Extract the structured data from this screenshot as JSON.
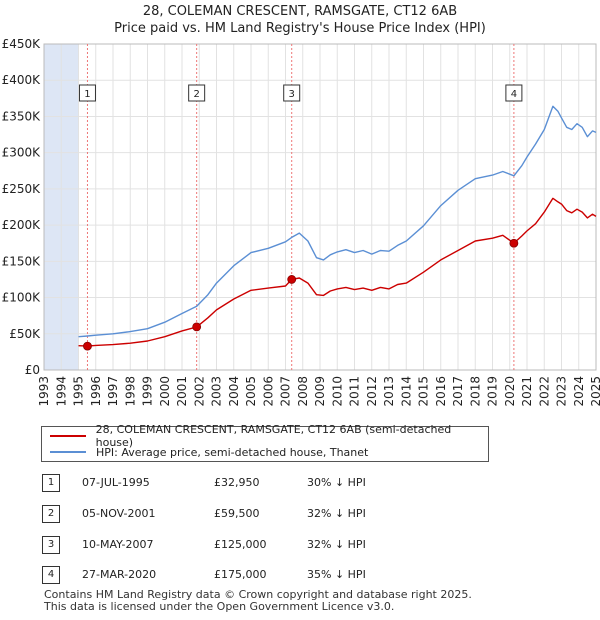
{
  "header": {
    "title": "28, COLEMAN CRESCENT, RAMSGATE, CT12 6AB",
    "subtitle": "Price paid vs. HM Land Registry's House Price Index (HPI)"
  },
  "colors": {
    "property": "#cc0000",
    "hpi": "#5b8fd4",
    "shade": "#dde6f5",
    "vline": "#ee7777"
  },
  "chart_data": {
    "type": "line",
    "title": "28, COLEMAN CRESCENT, RAMSGATE, CT12 6AB",
    "subtitle": "Price paid vs. HM Land Registry's House Price Index (HPI)",
    "xlabel": "",
    "ylabel": "",
    "xlim": [
      1993,
      2025
    ],
    "ylim": [
      0,
      450000
    ],
    "x_ticks": [
      "1993",
      "1994",
      "1995",
      "1996",
      "1997",
      "1998",
      "1999",
      "2000",
      "2001",
      "2002",
      "2003",
      "2004",
      "2005",
      "2006",
      "2007",
      "2008",
      "2009",
      "2010",
      "2011",
      "2012",
      "2013",
      "2014",
      "2015",
      "2016",
      "2017",
      "2018",
      "2019",
      "2020",
      "2021",
      "2022",
      "2023",
      "2024",
      "2025"
    ],
    "y_ticks": [
      0,
      50000,
      100000,
      150000,
      200000,
      250000,
      300000,
      350000,
      400000,
      450000
    ],
    "y_tick_labels": [
      "£0",
      "£50K",
      "£100K",
      "£150K",
      "£200K",
      "£250K",
      "£300K",
      "£350K",
      "£400K",
      "£450K"
    ],
    "grid": true,
    "data_range": [
      1995.0,
      2025.0
    ],
    "series": [
      {
        "name": "28, COLEMAN CRESCENT, RAMSGATE, CT12 6AB (semi-detached house)",
        "color": "#cc0000",
        "x": [
          1995.0,
          1995.52,
          1996.0,
          1997.0,
          1998.0,
          1999.0,
          2000.0,
          2001.0,
          2001.85,
          2002.5,
          2003.0,
          2004.0,
          2005.0,
          2006.0,
          2007.0,
          2007.36,
          2007.8,
          2008.3,
          2008.8,
          2009.2,
          2009.6,
          2010.0,
          2010.5,
          2011.0,
          2011.5,
          2012.0,
          2012.5,
          2013.0,
          2013.5,
          2014.0,
          2015.0,
          2016.0,
          2017.0,
          2018.0,
          2019.0,
          2019.6,
          2020.24,
          2020.7,
          2021.0,
          2021.5,
          2022.0,
          2022.5,
          2022.8,
          2023.0,
          2023.3,
          2023.6,
          2023.9,
          2024.2,
          2024.5,
          2024.8,
          2025.0
        ],
        "y": [
          33500,
          32950,
          34000,
          35000,
          37000,
          40000,
          46000,
          54000,
          59500,
          72000,
          83000,
          98000,
          110000,
          113000,
          116000,
          125000,
          127000,
          120000,
          104000,
          103000,
          109000,
          112000,
          114000,
          111000,
          113000,
          110000,
          114000,
          112000,
          118000,
          120000,
          135000,
          152000,
          165000,
          178000,
          182000,
          186000,
          175000,
          185000,
          192000,
          202000,
          218000,
          237000,
          232000,
          229000,
          220000,
          217000,
          222000,
          218000,
          210000,
          215000,
          212000
        ]
      },
      {
        "name": "HPI: Average price, semi-detached house, Thanet",
        "color": "#5b8fd4",
        "x": [
          1995.0,
          1995.52,
          1996.0,
          1997.0,
          1998.0,
          1999.0,
          2000.0,
          2001.0,
          2001.85,
          2002.5,
          2003.0,
          2004.0,
          2005.0,
          2006.0,
          2007.0,
          2007.36,
          2007.8,
          2008.3,
          2008.8,
          2009.2,
          2009.6,
          2010.0,
          2010.5,
          2011.0,
          2011.5,
          2012.0,
          2012.5,
          2013.0,
          2013.5,
          2014.0,
          2015.0,
          2016.0,
          2017.0,
          2018.0,
          2019.0,
          2019.6,
          2020.24,
          2020.7,
          2021.0,
          2021.5,
          2022.0,
          2022.5,
          2022.8,
          2023.0,
          2023.3,
          2023.6,
          2023.9,
          2024.2,
          2024.5,
          2024.8,
          2025.0
        ],
        "y": [
          46000,
          47000,
          48000,
          50000,
          53000,
          57000,
          66000,
          78000,
          88000,
          104000,
          120000,
          144000,
          162000,
          168000,
          177000,
          183000,
          189000,
          178000,
          155000,
          152000,
          159000,
          163000,
          166000,
          162000,
          165000,
          160000,
          165000,
          164000,
          172000,
          178000,
          199000,
          227000,
          248000,
          264000,
          269000,
          274000,
          268000,
          282000,
          294000,
          312000,
          332000,
          364000,
          357000,
          348000,
          335000,
          332000,
          340000,
          335000,
          322000,
          330000,
          328000
        ]
      }
    ],
    "transactions": [
      {
        "label": "1",
        "year": 1995.52,
        "price": 32950,
        "date": "07-JUL-1995",
        "price_label": "£32,950",
        "hpi_delta": "30% ↓ HPI"
      },
      {
        "label": "2",
        "year": 2001.85,
        "price": 59500,
        "date": "05-NOV-2001",
        "price_label": "£59,500",
        "hpi_delta": "32% ↓ HPI"
      },
      {
        "label": "3",
        "year": 2007.36,
        "price": 125000,
        "date": "10-MAY-2007",
        "price_label": "£125,000",
        "hpi_delta": "32% ↓ HPI"
      },
      {
        "label": "4",
        "year": 2020.24,
        "price": 175000,
        "date": "27-MAR-2020",
        "price_label": "£175,000",
        "hpi_delta": "35% ↓ HPI"
      }
    ]
  },
  "legend": {
    "property_label": "28, COLEMAN CRESCENT, RAMSGATE, CT12 6AB (semi-detached house)",
    "hpi_label": "HPI: Average price, semi-detached house, Thanet"
  },
  "transactions_table": [
    {
      "label": "1",
      "date": "07-JUL-1995",
      "price": "£32,950",
      "hpi": "30% ↓ HPI"
    },
    {
      "label": "2",
      "date": "05-NOV-2001",
      "price": "£59,500",
      "hpi": "32% ↓ HPI"
    },
    {
      "label": "3",
      "date": "10-MAY-2007",
      "price": "£125,000",
      "hpi": "32% ↓ HPI"
    },
    {
      "label": "4",
      "date": "27-MAR-2020",
      "price": "£175,000",
      "hpi": "35% ↓ HPI"
    }
  ],
  "footer": {
    "line1": "Contains HM Land Registry data © Crown copyright and database right 2025.",
    "line2": "This data is licensed under the Open Government Licence v3.0."
  }
}
